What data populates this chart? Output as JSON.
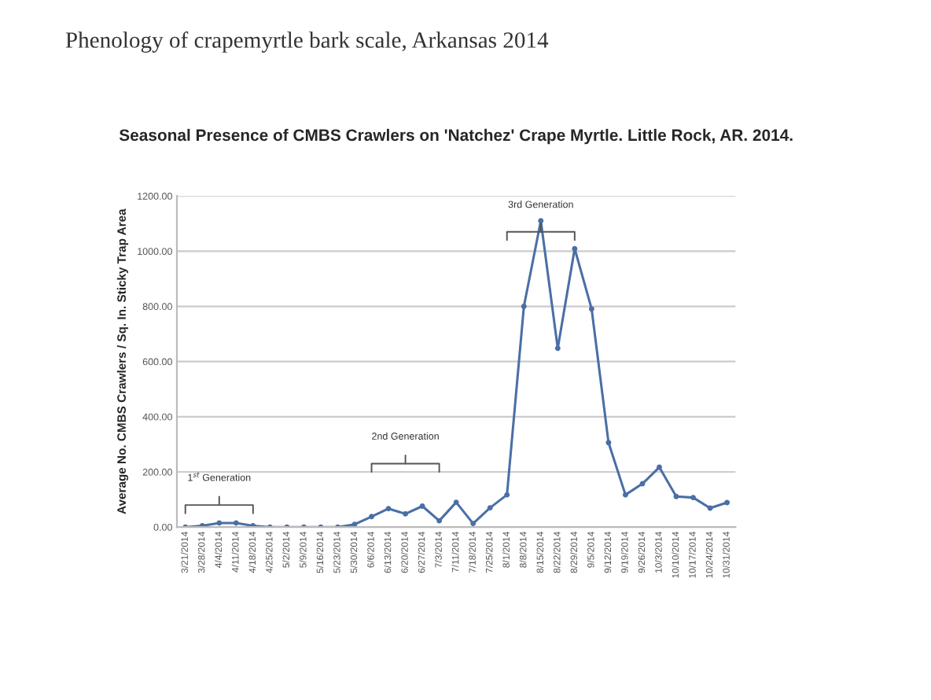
{
  "chart_data": {
    "type": "line",
    "title": "Phenology of crapemyrtle bark scale, Arkansas 2014",
    "subtitle": "Seasonal Presence of CMBS Crawlers on 'Natchez' Crape Myrtle. Little Rock, AR. 2014.",
    "ylabel": "Average No. CMBS Crawlers / Sq. In. Sticky Trap Area",
    "categories": [
      "3/21/2014",
      "3/28/2014",
      "4/4/2014",
      "4/11/2014",
      "4/18/2014",
      "4/25/2014",
      "5/2/2014",
      "5/9/2014",
      "5/16/2014",
      "5/23/2014",
      "5/30/2014",
      "6/6/2014",
      "6/13/2014",
      "6/20/2014",
      "6/27/2014",
      "7/3/2014",
      "7/11/2014",
      "7/18/2014",
      "7/25/2014",
      "8/1/2014",
      "8/8/2014",
      "8/15/2014",
      "8/22/2014",
      "8/29/2014",
      "9/5/2014",
      "9/12/2014",
      "9/19/2014",
      "9/26/2014",
      "10/3/2014",
      "10/10/2014",
      "10/17/2014",
      "10/24/2014",
      "10/31/2014"
    ],
    "series": [
      {
        "color": "#4a6fa5",
        "values": [
          0,
          5,
          15,
          15,
          5,
          0,
          0,
          0,
          0,
          0,
          10,
          38,
          67,
          48,
          76,
          23,
          90,
          13,
          70,
          117,
          800,
          1110,
          648,
          1009,
          791,
          306,
          117,
          157,
          217,
          111,
          107,
          69,
          89
        ]
      }
    ],
    "ylim": [
      0,
      1200
    ],
    "yticks": [
      {
        "value": 0,
        "label": "0.00"
      },
      {
        "value": 200,
        "label": "200.00"
      },
      {
        "value": 400,
        "label": "400.00"
      },
      {
        "value": 600,
        "label": "600.00"
      },
      {
        "value": 800,
        "label": "800.00"
      },
      {
        "value": 1000,
        "label": "1000.00"
      },
      {
        "value": 1200,
        "label": "1200.00"
      }
    ],
    "grid": "y",
    "marker": "circle",
    "line_style": "solid",
    "annotations": [
      "1$^{st}$ Generation",
      "2nd Generation",
      "3rd Generation"
    ]
  }
}
